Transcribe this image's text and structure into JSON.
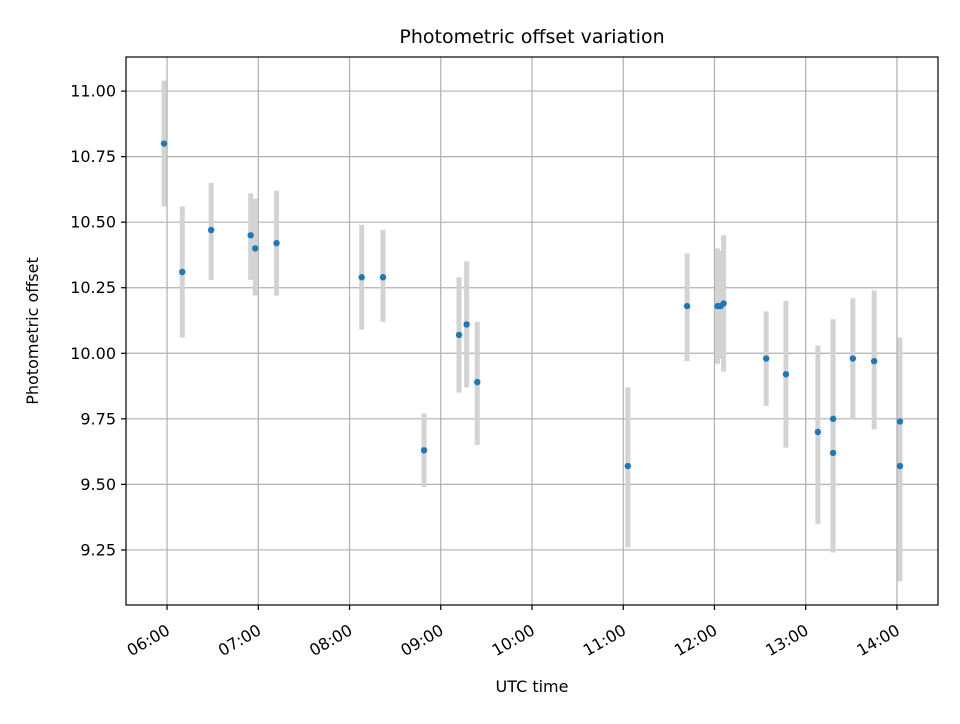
{
  "chart_data": {
    "type": "scatter",
    "title": "Photometric offset variation",
    "xlabel": "UTC time",
    "ylabel": "Photometric offset",
    "x_unit": "UTC time (HH:MM)",
    "xlim": [
      "05:33",
      "14:27"
    ],
    "ylim": [
      9.04,
      11.13
    ],
    "xticks": [
      "06:00",
      "07:00",
      "08:00",
      "09:00",
      "10:00",
      "11:00",
      "12:00",
      "13:00",
      "14:00"
    ],
    "yticks": [
      9.25,
      9.5,
      9.75,
      10.0,
      10.25,
      10.5,
      10.75,
      11.0
    ],
    "ytick_labels": [
      "9.25",
      "9.50",
      "9.75",
      "10.00",
      "10.25",
      "10.50",
      "10.75",
      "11.00"
    ],
    "grid": true,
    "legend": "none",
    "marker_color": "#1f77b4",
    "errorbar_color": "#d3d3d3",
    "points": [
      {
        "x": "05:58",
        "y": 10.8,
        "err_low": 10.56,
        "err_high": 11.04
      },
      {
        "x": "06:10",
        "y": 10.31,
        "err_low": 10.06,
        "err_high": 10.56
      },
      {
        "x": "06:29",
        "y": 10.47,
        "err_low": 10.28,
        "err_high": 10.65
      },
      {
        "x": "06:55",
        "y": 10.45,
        "err_low": 10.28,
        "err_high": 10.61
      },
      {
        "x": "06:58",
        "y": 10.4,
        "err_low": 10.22,
        "err_high": 10.59
      },
      {
        "x": "07:12",
        "y": 10.42,
        "err_low": 10.22,
        "err_high": 10.62
      },
      {
        "x": "08:08",
        "y": 10.29,
        "err_low": 10.09,
        "err_high": 10.49
      },
      {
        "x": "08:22",
        "y": 10.29,
        "err_low": 10.12,
        "err_high": 10.47
      },
      {
        "x": "08:49",
        "y": 9.63,
        "err_low": 9.49,
        "err_high": 9.77
      },
      {
        "x": "09:12",
        "y": 10.07,
        "err_low": 9.85,
        "err_high": 10.29
      },
      {
        "x": "09:17",
        "y": 10.11,
        "err_low": 9.87,
        "err_high": 10.35
      },
      {
        "x": "09:24",
        "y": 9.89,
        "err_low": 9.65,
        "err_high": 10.12
      },
      {
        "x": "11:03",
        "y": 9.57,
        "err_low": 9.26,
        "err_high": 9.87
      },
      {
        "x": "11:42",
        "y": 10.18,
        "err_low": 9.97,
        "err_high": 10.38
      },
      {
        "x": "12:02",
        "y": 10.18,
        "err_low": 9.96,
        "err_high": 10.4
      },
      {
        "x": "12:04",
        "y": 10.18,
        "err_low": 9.98,
        "err_high": 10.39
      },
      {
        "x": "12:06",
        "y": 10.19,
        "err_low": 9.93,
        "err_high": 10.45
      },
      {
        "x": "12:34",
        "y": 9.98,
        "err_low": 9.8,
        "err_high": 10.16
      },
      {
        "x": "12:47",
        "y": 9.92,
        "err_low": 9.64,
        "err_high": 10.2
      },
      {
        "x": "13:08",
        "y": 9.7,
        "err_low": 9.35,
        "err_high": 10.03
      },
      {
        "x": "13:18",
        "y": 9.75,
        "err_low": 9.37,
        "err_high": 10.13
      },
      {
        "x": "13:18",
        "y": 9.62,
        "err_low": 9.24,
        "err_high": 9.99
      },
      {
        "x": "13:31",
        "y": 9.98,
        "err_low": 9.75,
        "err_high": 10.21
      },
      {
        "x": "13:45",
        "y": 9.97,
        "err_low": 9.71,
        "err_high": 10.24
      },
      {
        "x": "14:02",
        "y": 9.74,
        "err_low": 9.4,
        "err_high": 10.06
      },
      {
        "x": "14:02",
        "y": 9.57,
        "err_low": 9.13,
        "err_high": 9.85
      }
    ]
  }
}
